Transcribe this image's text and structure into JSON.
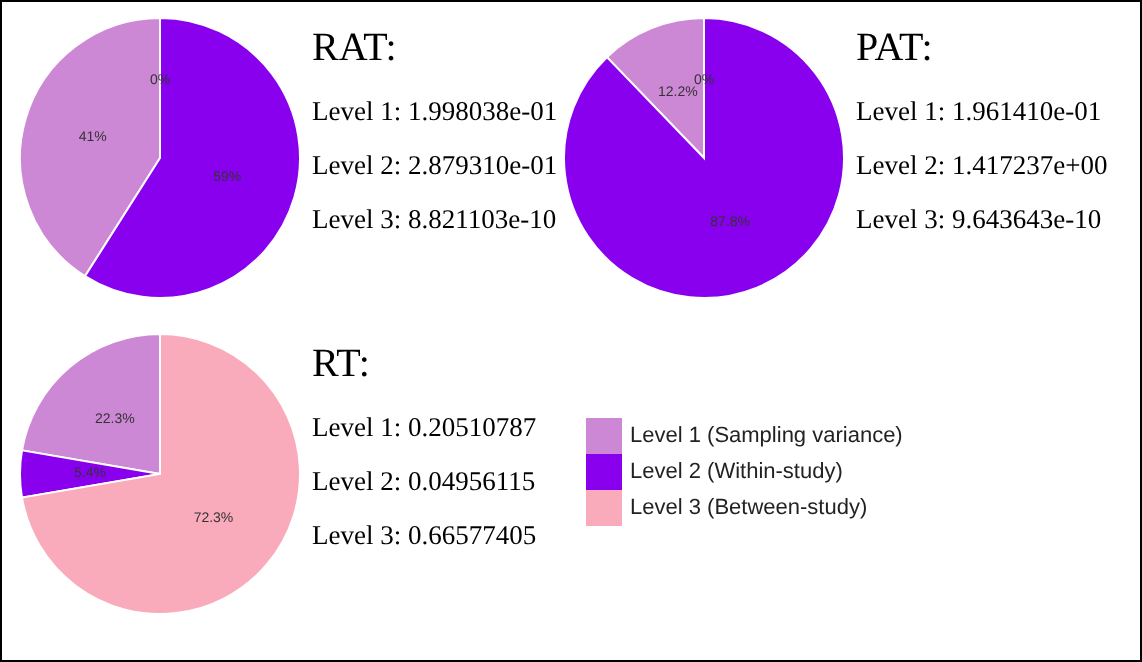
{
  "chart_data": [
    {
      "type": "pie",
      "title": "RAT:",
      "categories": [
        null,
        null,
        null
      ],
      "values": [
        41,
        59,
        0
      ],
      "value_labels": [
        "41%",
        "59%",
        "0%"
      ],
      "colors": [
        "#cc88d4",
        "#8800ee",
        "#f9aabb"
      ],
      "legend": false,
      "annotations": [
        "Level 1: 1.998038e-01",
        "Level 2: 2.879310e-01",
        "Level 3: 8.821103e-10"
      ]
    },
    {
      "type": "pie",
      "title": "PAT:",
      "categories": [
        null,
        null,
        null
      ],
      "values": [
        12.2,
        87.8,
        0
      ],
      "value_labels": [
        "12.2%",
        "87.8%",
        "0%"
      ],
      "colors": [
        "#cc88d4",
        "#8800ee",
        "#f9aabb"
      ],
      "legend": false,
      "annotations": [
        "Level 1: 1.961410e-01",
        "Level 2: 1.417237e+00",
        "Level 3: 9.643643e-10"
      ]
    },
    {
      "type": "pie",
      "title": "RT:",
      "categories": [
        "Level 1 (Sampling variance)",
        "Level 2 (Within-study)",
        "Level 3 (Between-study)"
      ],
      "values": [
        22.3,
        5.4,
        72.3
      ],
      "value_labels": [
        "22.3%",
        "5.4%",
        "72.3%"
      ],
      "colors": [
        "#cc88d4",
        "#8800ee",
        "#f9aabb"
      ],
      "legend": "right",
      "annotations": [
        "Level 1: 0.20510787",
        "Level 2: 0.04956115",
        "Level 3: 0.66577405"
      ]
    }
  ]
}
